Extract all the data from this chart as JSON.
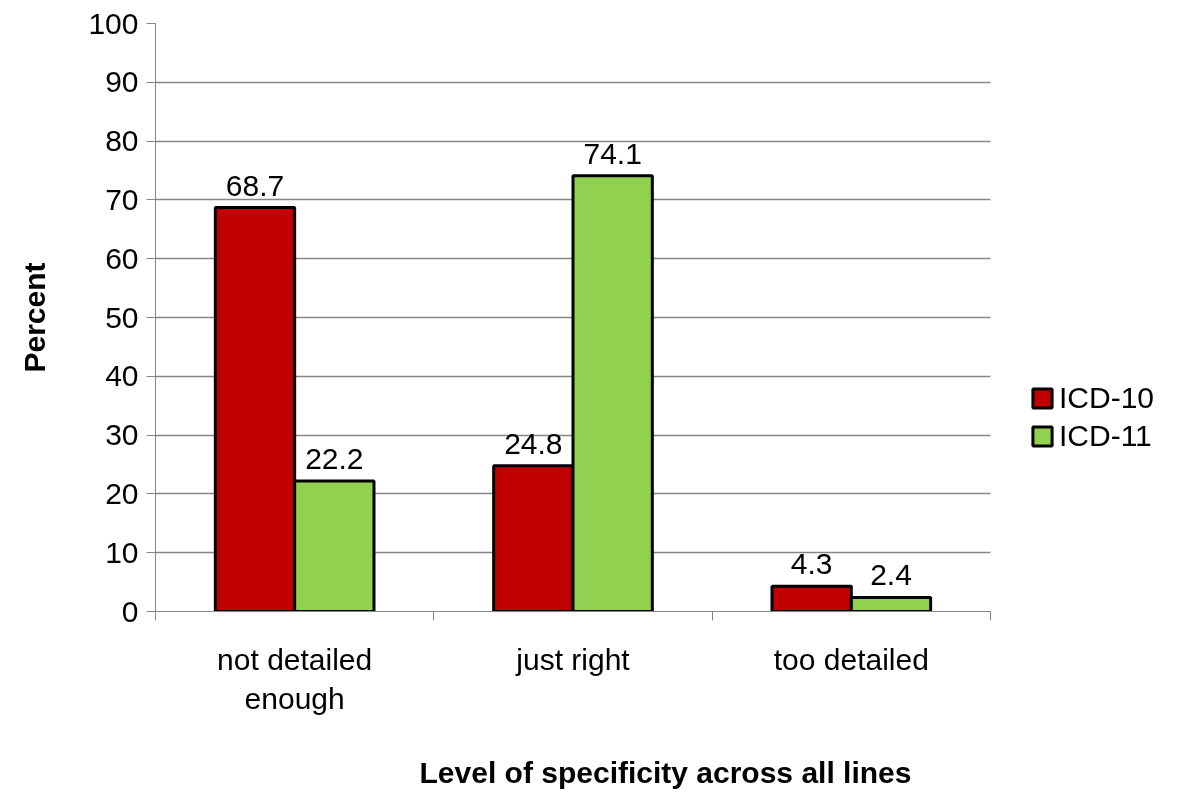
{
  "chart_data": {
    "type": "bar",
    "xlabel": "Level of specificity across all lines",
    "ylabel": "Percent",
    "categories": [
      "not detailed enough",
      "just right",
      "too detailed"
    ],
    "series": [
      {
        "name": "ICD-10",
        "color": "#c00000",
        "values": [
          68.7,
          24.8,
          4.3
        ]
      },
      {
        "name": "ICD-11",
        "color": "#92d050",
        "values": [
          22.2,
          74.1,
          2.4
        ]
      }
    ],
    "ylim": [
      0,
      100
    ],
    "yticks": [
      0,
      10,
      20,
      30,
      40,
      50,
      60,
      70,
      80,
      90,
      100
    ],
    "grid": "y",
    "legend": "right",
    "data_labels": true
  }
}
